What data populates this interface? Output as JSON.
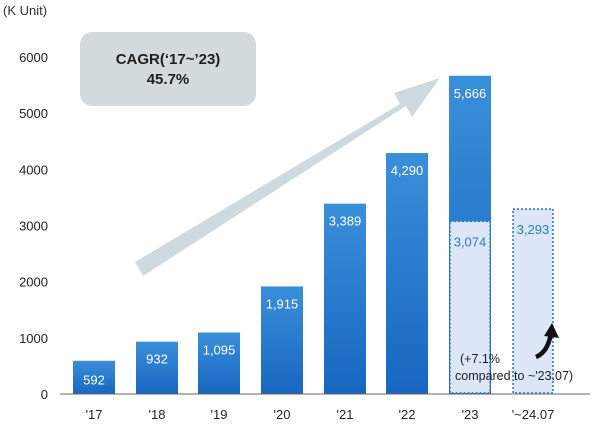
{
  "chart_data": {
    "type": "bar",
    "unit_label": "(K Unit)",
    "categories": [
      "'17",
      "'18",
      "'19",
      "'20",
      "'21",
      "'22",
      "'23",
      "'~24.07"
    ],
    "values": [
      592,
      932,
      1095,
      1915,
      3389,
      4290,
      5666,
      null
    ],
    "value_labels": [
      "592",
      "932",
      "1,095",
      "1,915",
      "3,389",
      "4,290",
      "5,666",
      ""
    ],
    "partial_values": [
      null,
      null,
      null,
      null,
      null,
      null,
      3074,
      3293
    ],
    "partial_labels": [
      "",
      "",
      "",
      "",
      "",
      "",
      "3,074",
      "3,293"
    ],
    "ylim": [
      0,
      6000
    ],
    "yticks": [
      "0",
      "1000",
      "2000",
      "3000",
      "4000",
      "5000",
      "6000"
    ],
    "cagr": {
      "line1": "CAGR(‘17~’23)",
      "line2": "45.7%"
    },
    "note": {
      "line1": "(+7.1%",
      "line2": "compared to ~'23.07)"
    },
    "colors": {
      "bar_top": "#3a8fd9",
      "bar_bottom": "#1766c1",
      "partial_fill": "#dce6f7",
      "partial_border": "#2b7cc6",
      "arrow": "#cfd9e0",
      "cagr_box": "#d3dadd"
    }
  }
}
